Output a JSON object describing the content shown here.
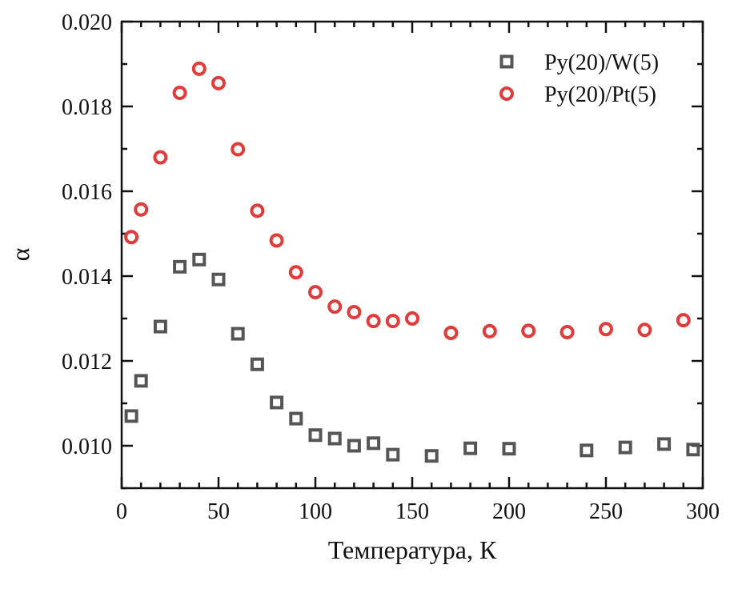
{
  "chart_data": {
    "type": "scatter",
    "title": "",
    "xlabel": "Температура, К",
    "ylabel": "α",
    "xlim": [
      0,
      300
    ],
    "ylim": [
      0.009,
      0.02
    ],
    "xticks": [
      0,
      50,
      100,
      150,
      200,
      250,
      300
    ],
    "xtick_labels": [
      "0",
      "50",
      "100",
      "150",
      "200",
      "250",
      "300"
    ],
    "yticks": [
      0.01,
      0.012,
      0.014,
      0.016,
      0.018,
      0.02
    ],
    "ytick_labels": [
      "0.010",
      "0.012",
      "0.014",
      "0.016",
      "0.018",
      "0.020"
    ],
    "x_minor_step": 10,
    "y_minor_step": 0.001,
    "grid": false,
    "legend_position": "top-right",
    "series": [
      {
        "name": "Py(20)/W(5)",
        "marker": "open-square",
        "color": "#555555",
        "x": [
          5,
          10,
          20,
          30,
          40,
          50,
          60,
          70,
          80,
          90,
          100,
          110,
          120,
          130,
          140,
          160,
          180,
          200,
          240,
          260,
          280,
          295
        ],
        "y": [
          0.0107,
          0.01153,
          0.01281,
          0.01422,
          0.01439,
          0.01392,
          0.01264,
          0.01192,
          0.01102,
          0.01064,
          0.01025,
          0.01017,
          0.01,
          0.01006,
          0.00979,
          0.00976,
          0.00994,
          0.00993,
          0.00989,
          0.00996,
          0.01004,
          0.00991
        ]
      },
      {
        "name": "Py(20)/Pt(5)",
        "marker": "open-circle",
        "color": "#e03c3c",
        "x": [
          5,
          10,
          20,
          30,
          40,
          50,
          60,
          70,
          80,
          90,
          100,
          110,
          120,
          130,
          140,
          150,
          170,
          190,
          210,
          230,
          250,
          270,
          290
        ],
        "y": [
          0.01492,
          0.01557,
          0.0168,
          0.01832,
          0.01889,
          0.01855,
          0.01699,
          0.01554,
          0.01484,
          0.01409,
          0.01362,
          0.01328,
          0.01315,
          0.01294,
          0.01294,
          0.013,
          0.01266,
          0.0127,
          0.01271,
          0.01268,
          0.01275,
          0.01273,
          0.01296
        ]
      }
    ]
  }
}
